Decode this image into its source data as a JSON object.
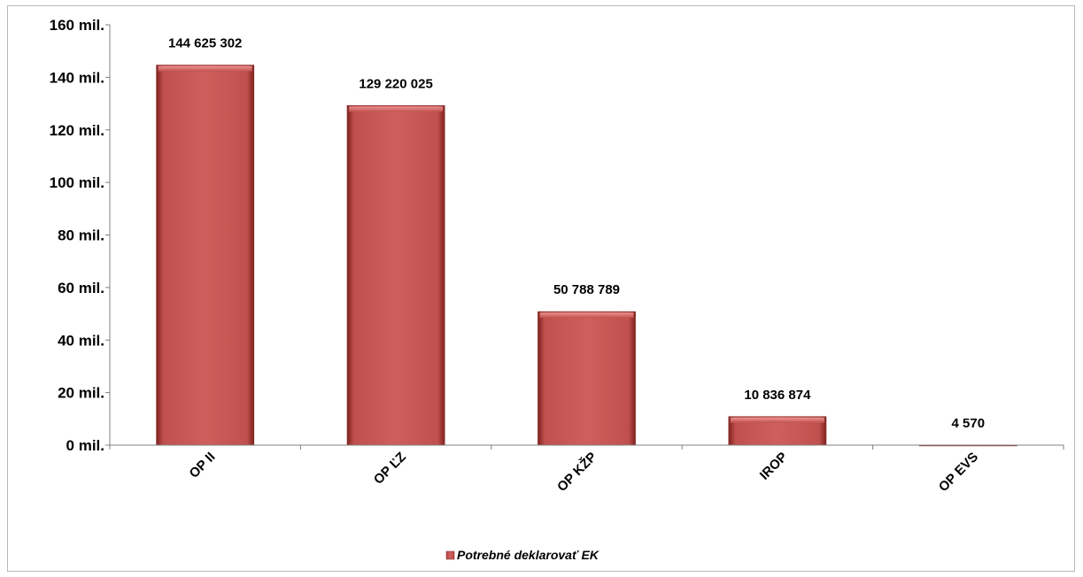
{
  "chart_data": {
    "type": "bar",
    "categories": [
      "OP II",
      "OP ĽZ",
      "OP KŽP",
      "IROP",
      "OP EVS"
    ],
    "series": [
      {
        "name": "Potrebné deklarovať EK",
        "values": [
          144625302,
          129220025,
          50788789,
          10836874,
          4570
        ],
        "data_labels": [
          "144 625 302",
          "129 220 025",
          "50 788 789",
          "10 836 874",
          "4 570"
        ]
      }
    ],
    "ylim": [
      0,
      160000000
    ],
    "yticks": [
      0,
      20000000,
      40000000,
      60000000,
      80000000,
      100000000,
      120000000,
      140000000,
      160000000
    ],
    "ytick_labels": [
      "0 mil.",
      "20 mil.",
      "40 mil.",
      "60 mil.",
      "80 mil.",
      "100 mil.",
      "120 mil.",
      "140 mil.",
      "160 mil."
    ],
    "title": "",
    "xlabel": "",
    "ylabel": "",
    "grid": false,
    "legend_position": "bottom",
    "colors": {
      "bar": "#c0504d",
      "bar_light": "#e8807d",
      "bar_dark": "#7e2220",
      "axis": "#808080"
    }
  }
}
